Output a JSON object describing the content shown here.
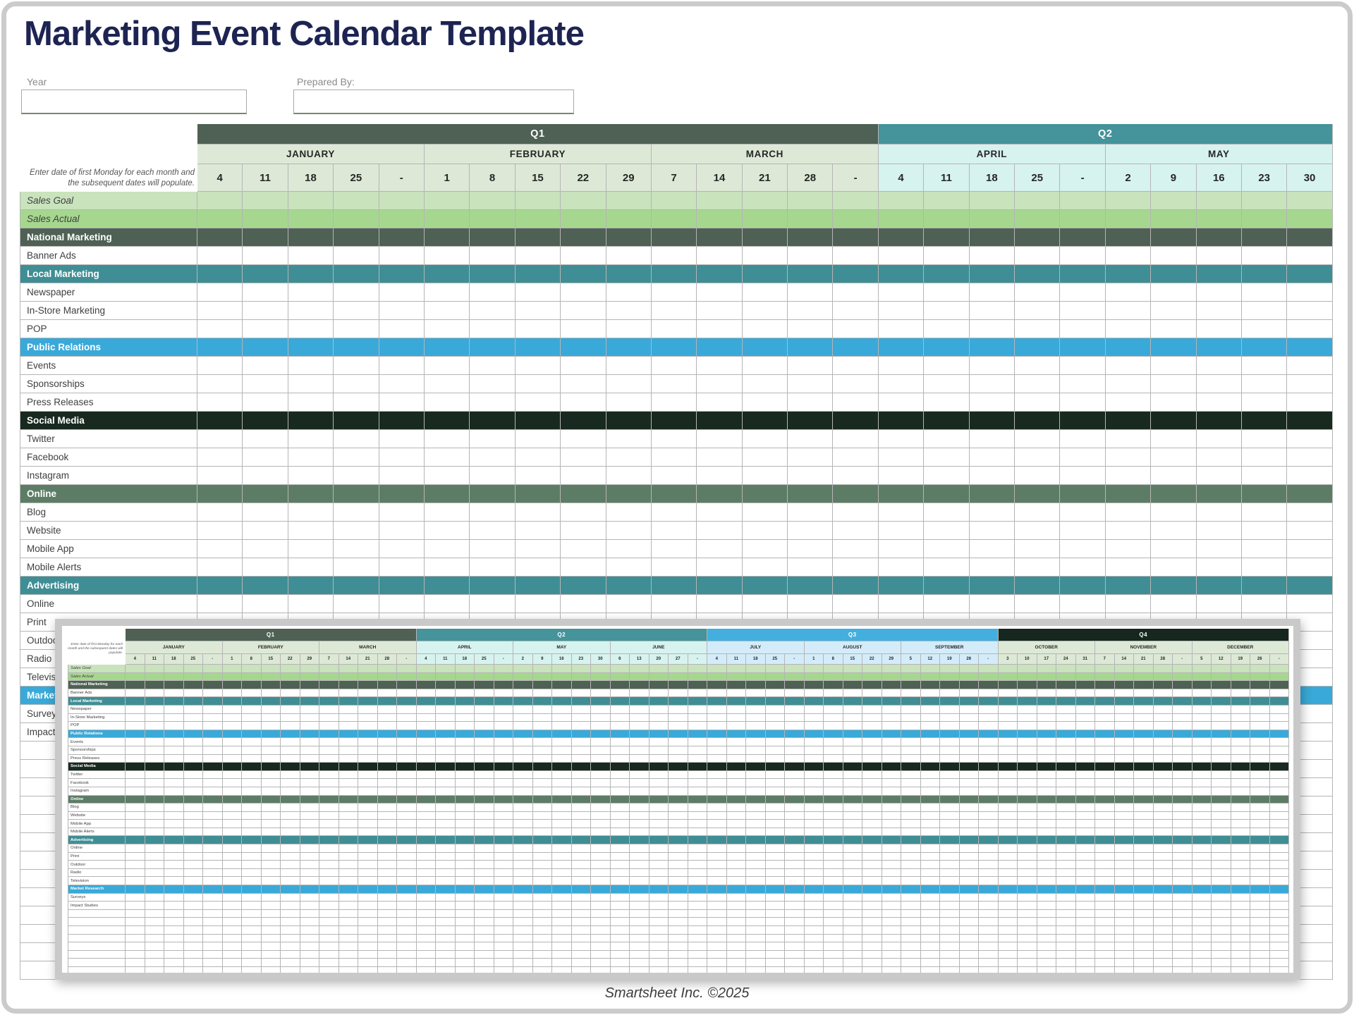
{
  "title": "Marketing Event Calendar Template",
  "fields": {
    "year_label": "Year",
    "year_value": "",
    "prepared_label": "Prepared By:",
    "prepared_value": ""
  },
  "note": "Enter date of first Monday for each month and the subsequent dates will populate.",
  "footer": "Smartsheet Inc. ©2025",
  "colors": {
    "title": "#1d2452",
    "grid_line": "#b5b5b5",
    "q1": "#4e6154",
    "q1_head": "#dde9d6",
    "q2": "#45939b",
    "q2_head": "#d7f3ef",
    "q3": "#43afdf",
    "q3_head": "#d4ecfa",
    "q4": "#15271e",
    "q4_head": "#dde9d6",
    "goal_row": "#c9e3bd",
    "actual_row": "#a6d78f",
    "cat_dark_green": "#4e6154",
    "cat_teal": "#3f8e95",
    "cat_blue": "#39a9d9",
    "cat_black_green": "#18291f",
    "cat_green": "#5d7c66"
  },
  "calendar": {
    "quarters": [
      {
        "label": "Q1",
        "color_key": "q1",
        "head_key": "q1_head",
        "months": [
          {
            "name": "JANUARY",
            "dates": [
              "4",
              "11",
              "18",
              "25",
              "-"
            ]
          },
          {
            "name": "FEBRUARY",
            "dates": [
              "1",
              "8",
              "15",
              "22",
              "29"
            ]
          },
          {
            "name": "MARCH",
            "dates": [
              "7",
              "14",
              "21",
              "28",
              "-"
            ]
          }
        ]
      },
      {
        "label": "Q2",
        "color_key": "q2",
        "head_key": "q2_head",
        "months": [
          {
            "name": "APRIL",
            "dates": [
              "4",
              "11",
              "18",
              "25",
              "-"
            ]
          },
          {
            "name": "MAY",
            "dates": [
              "2",
              "9",
              "16",
              "23",
              "30"
            ]
          },
          {
            "name": "JUNE",
            "dates": [
              "6",
              "13",
              "20",
              "27",
              "-"
            ]
          }
        ]
      },
      {
        "label": "Q3",
        "color_key": "q3",
        "head_key": "q3_head",
        "months": [
          {
            "name": "JULY",
            "dates": [
              "4",
              "11",
              "18",
              "25",
              "-"
            ]
          },
          {
            "name": "AUGUST",
            "dates": [
              "1",
              "8",
              "15",
              "22",
              "29"
            ]
          },
          {
            "name": "SEPTEMBER",
            "dates": [
              "5",
              "12",
              "19",
              "26",
              "-"
            ]
          }
        ]
      },
      {
        "label": "Q4",
        "color_key": "q4",
        "head_key": "q4_head",
        "months": [
          {
            "name": "OCTOBER",
            "dates": [
              "3",
              "10",
              "17",
              "24",
              "31"
            ]
          },
          {
            "name": "NOVEMBER",
            "dates": [
              "7",
              "14",
              "21",
              "28",
              "-"
            ]
          },
          {
            "name": "DECEMBER",
            "dates": [
              "5",
              "12",
              "19",
              "26",
              "-"
            ]
          }
        ]
      }
    ],
    "rows": [
      {
        "label": "Sales Goal",
        "type": "goal"
      },
      {
        "label": "Sales Actual",
        "type": "actual"
      },
      {
        "label": "National Marketing",
        "type": "cat",
        "color_key": "cat_dark_green"
      },
      {
        "label": "Banner Ads",
        "type": "item"
      },
      {
        "label": "Local Marketing",
        "type": "cat",
        "color_key": "cat_teal"
      },
      {
        "label": "Newspaper",
        "type": "item"
      },
      {
        "label": "In-Store Marketing",
        "type": "item"
      },
      {
        "label": "POP",
        "type": "item"
      },
      {
        "label": "Public Relations",
        "type": "cat",
        "color_key": "cat_blue"
      },
      {
        "label": "Events",
        "type": "item"
      },
      {
        "label": "Sponsorships",
        "type": "item"
      },
      {
        "label": "Press Releases",
        "type": "item"
      },
      {
        "label": "Social Media",
        "type": "cat",
        "color_key": "cat_black_green"
      },
      {
        "label": "Twitter",
        "type": "item"
      },
      {
        "label": "Facebook",
        "type": "item"
      },
      {
        "label": "Instagram",
        "type": "item"
      },
      {
        "label": "Online",
        "type": "cat",
        "color_key": "cat_green"
      },
      {
        "label": "Blog",
        "type": "item"
      },
      {
        "label": "Website",
        "type": "item"
      },
      {
        "label": "Mobile App",
        "type": "item"
      },
      {
        "label": "Mobile Alerts",
        "type": "item"
      },
      {
        "label": "Advertising",
        "type": "cat",
        "color_key": "cat_teal"
      },
      {
        "label": "Online",
        "type": "item"
      },
      {
        "label": "Print",
        "type": "item"
      },
      {
        "label": "Outdoor",
        "type": "item"
      },
      {
        "label": "Radio",
        "type": "item"
      },
      {
        "label": "Television",
        "type": "item"
      },
      {
        "label": "Market Research",
        "type": "cat",
        "color_key": "cat_blue"
      },
      {
        "label": "Surveys",
        "type": "item"
      },
      {
        "label": "Impact Studies",
        "type": "item"
      }
    ],
    "main_view_months": 5,
    "main_view_empty_rows": 13,
    "preview_view_months": 12,
    "preview_empty_rows": 8
  }
}
